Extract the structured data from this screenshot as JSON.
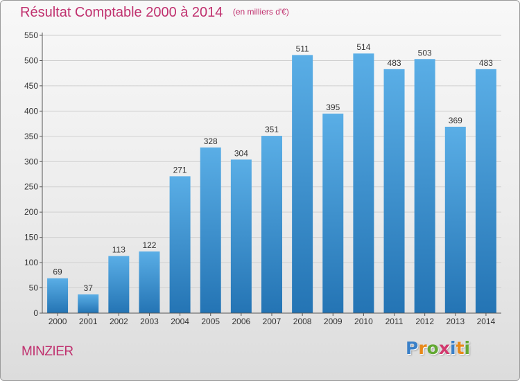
{
  "header": {
    "title": "Résultat Comptable 2000 à 2014",
    "unit": "(en milliers d'€)"
  },
  "footer": {
    "place": "MINZIER",
    "brand": "Proxiti",
    "brand_letter_colors": [
      "#3a80c8",
      "#e8891a",
      "#63a833",
      "#d23a6e",
      "#3a80c8",
      "#e8891a",
      "#63a833"
    ]
  },
  "colors": {
    "title": "#c0306e",
    "bar_top": "#5aaee6",
    "bar_bottom": "#2474b4",
    "grid": "#cfcfcf",
    "axis": "#555555",
    "label": "#333333"
  },
  "chart_data": {
    "type": "bar",
    "categories": [
      "2000",
      "2001",
      "2002",
      "2003",
      "2004",
      "2005",
      "2006",
      "2007",
      "2008",
      "2009",
      "2010",
      "2011",
      "2012",
      "2013",
      "2014"
    ],
    "values": [
      69,
      37,
      113,
      122,
      271,
      328,
      304,
      351,
      511,
      395,
      514,
      483,
      503,
      369,
      483
    ],
    "title": "Résultat Comptable 2000 à 2014",
    "ylim": [
      0,
      550
    ],
    "yticks": [
      0,
      50,
      100,
      150,
      200,
      250,
      300,
      350,
      400,
      450,
      500,
      550
    ],
    "grid": true,
    "data_labels": true
  }
}
